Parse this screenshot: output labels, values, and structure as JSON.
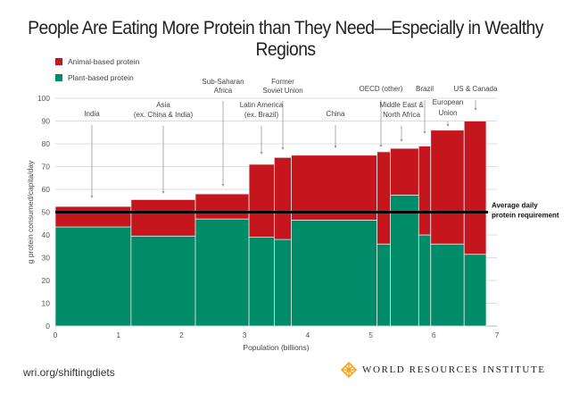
{
  "title": "People Are Eating More Protein than They Need—Especially in Wealthy Regions",
  "footer": {
    "url": "wri.org/shiftingdiets",
    "logo_text": "WORLD RESOURCES INSTITUTE"
  },
  "colors": {
    "animal": "#C4161C",
    "plant": "#008C69",
    "requirement_line": "#000000",
    "logo": "#F5A623"
  },
  "chart_data": {
    "type": "bar",
    "subtype": "variable-width stacked bar (marimekko)",
    "xlabel": "Population (billions)",
    "ylabel": "g protein consumed/capita/day",
    "xlim": [
      0,
      7
    ],
    "ylim": [
      0,
      100
    ],
    "xticks": [
      "0",
      "1",
      "2",
      "3",
      "4",
      "5",
      "6",
      "7"
    ],
    "yticks": [
      "0",
      "10",
      "20",
      "30",
      "40",
      "50",
      "60",
      "70",
      "80",
      "90",
      "100"
    ],
    "grid": "horizontal",
    "legend": {
      "placement": "top-left",
      "entries": [
        "Animal-based protein",
        "Plant-based protein"
      ]
    },
    "reference_line": {
      "value": 50,
      "label": [
        "Average daily",
        "protein requirement"
      ]
    },
    "regions": [
      {
        "label": [
          "India"
        ],
        "population": 1.2,
        "plant": 43.5,
        "total": 52.5
      },
      {
        "label": [
          "Asia",
          "(ex. China & India)"
        ],
        "population": 1.02,
        "plant": 39.5,
        "total": 55.5
      },
      {
        "label": [
          "Sub-Saharan",
          "Africa"
        ],
        "population": 0.85,
        "plant": 47,
        "total": 58
      },
      {
        "label": [
          "Latin America",
          "(ex. Brazil)"
        ],
        "population": 0.4,
        "plant": 39,
        "total": 71
      },
      {
        "label": [
          "Former",
          "Soviet Union"
        ],
        "population": 0.27,
        "plant": 38,
        "total": 74
      },
      {
        "label": [
          "China"
        ],
        "population": 1.36,
        "plant": 46.5,
        "total": 75
      },
      {
        "label": [
          "OECD (other)"
        ],
        "population": 0.21,
        "plant": 36,
        "total": 76.5
      },
      {
        "label": [
          "Middle East &",
          "North Africa"
        ],
        "population": 0.45,
        "plant": 57.5,
        "total": 78
      },
      {
        "label": [
          "Brazil"
        ],
        "population": 0.19,
        "plant": 40,
        "total": 79
      },
      {
        "label": [
          "European",
          "Union"
        ],
        "population": 0.53,
        "plant": 36,
        "total": 86
      },
      {
        "label": [
          "US & Canada"
        ],
        "population": 0.35,
        "plant": 31.5,
        "total": 90
      }
    ]
  }
}
